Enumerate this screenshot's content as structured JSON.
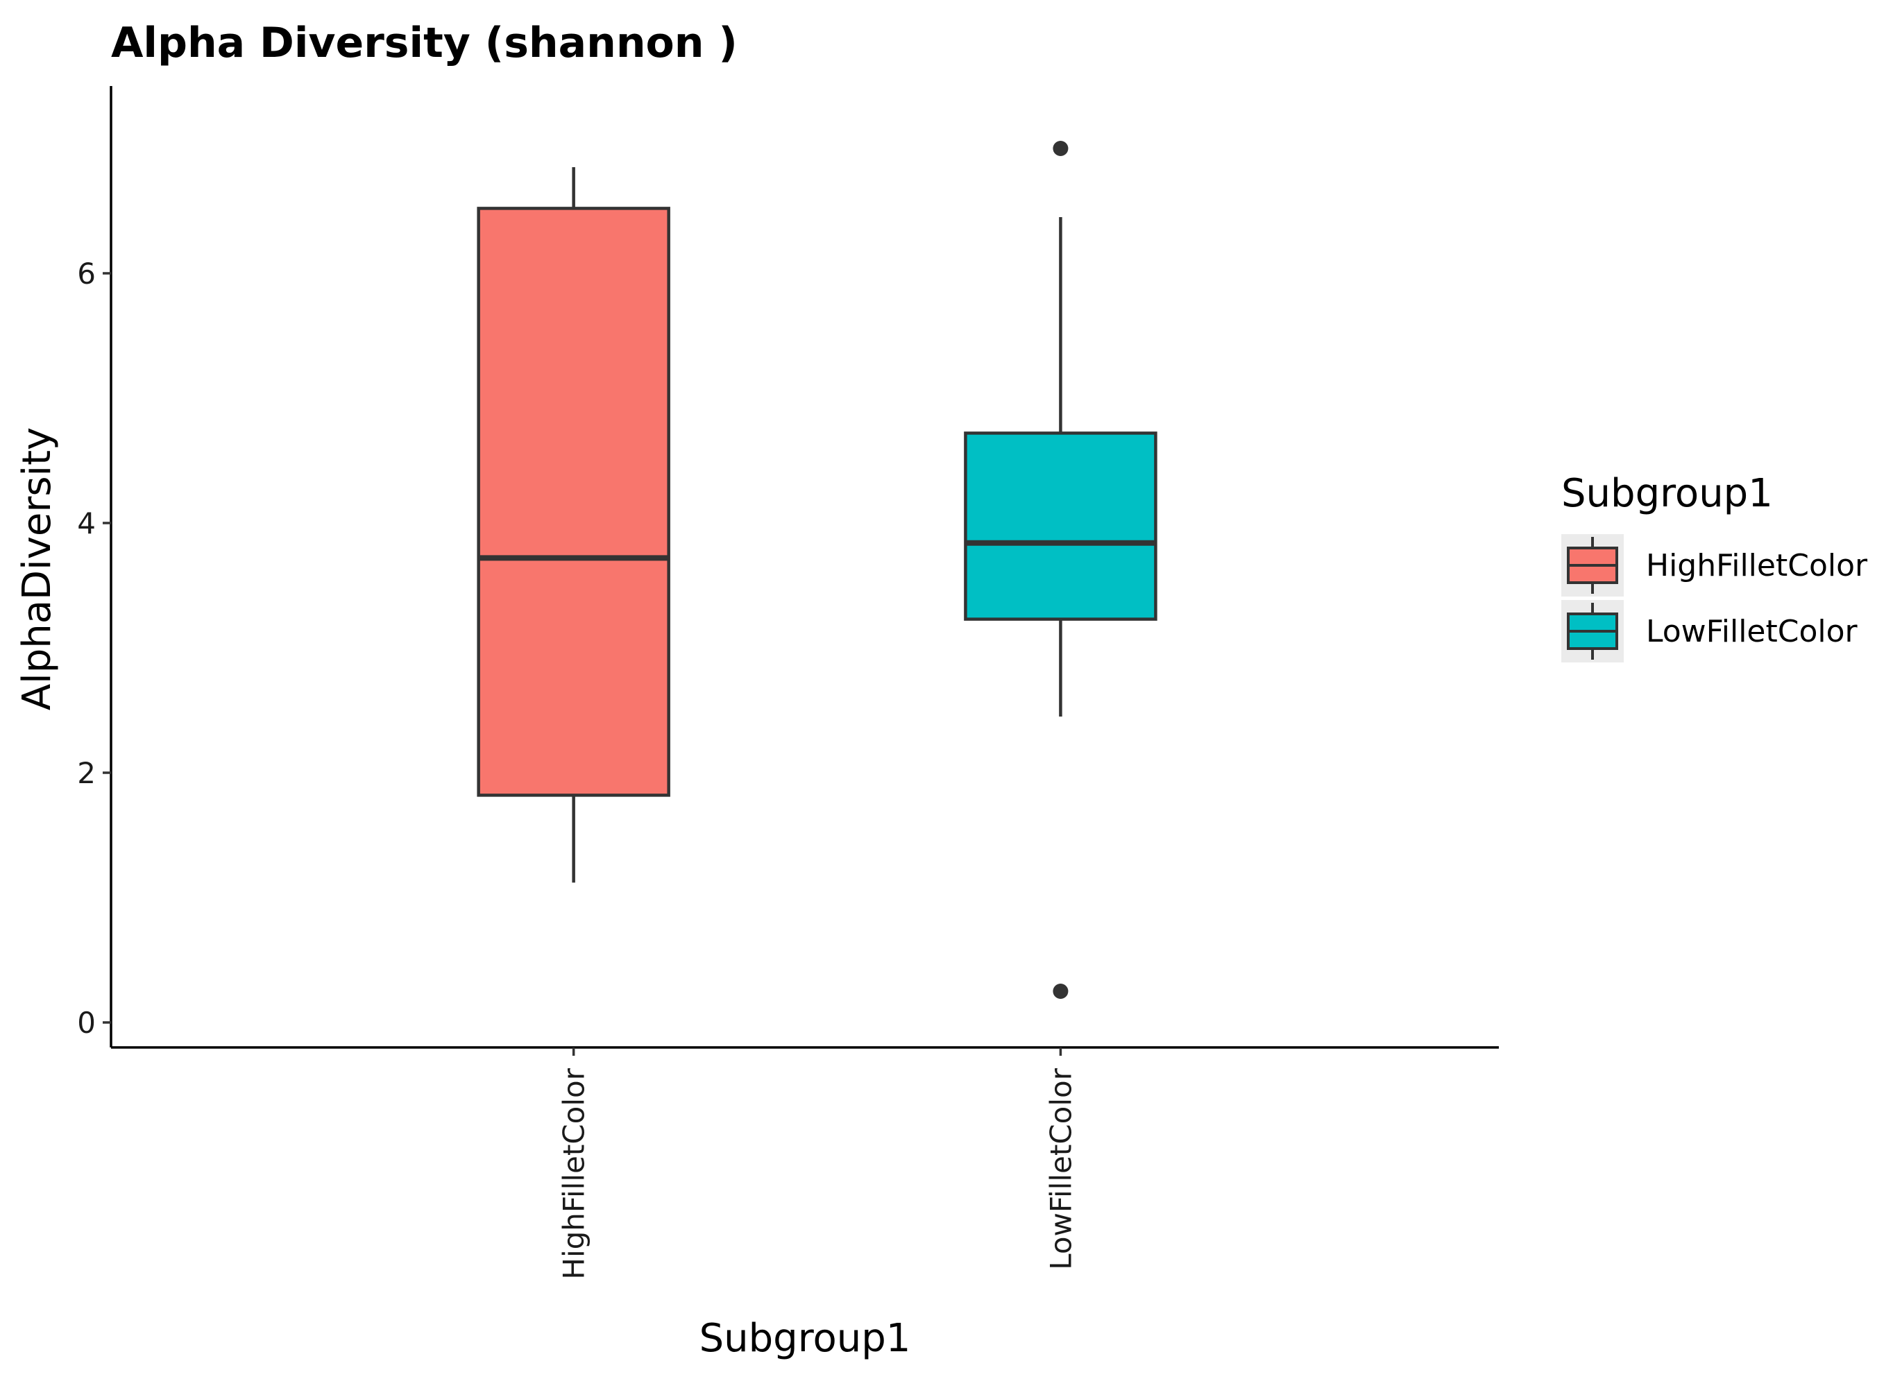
{
  "chart_data": {
    "type": "boxplot",
    "title": "Alpha Diversity (shannon )",
    "xlabel": "Subgroup1",
    "ylabel": "AlphaDiversity",
    "ylim": [
      -0.2,
      7.5
    ],
    "yticks": [
      0,
      2,
      4,
      6
    ],
    "categories": [
      "HighFilletColor",
      "LowFilletColor"
    ],
    "series": [
      {
        "name": "HighFilletColor",
        "color": "#F8766D",
        "whisker_low": 1.12,
        "q1": 1.82,
        "median": 3.72,
        "q3": 6.52,
        "whisker_high": 6.85,
        "outliers": []
      },
      {
        "name": "LowFilletColor",
        "color": "#00BFC4",
        "whisker_low": 2.45,
        "q1": 3.23,
        "median": 3.84,
        "q3": 4.72,
        "whisker_high": 6.45,
        "outliers": [
          7.0,
          0.25
        ]
      }
    ],
    "legend": {
      "title": "Subgroup1",
      "position": "right",
      "entries": [
        "HighFilletColor",
        "LowFilletColor"
      ]
    },
    "grid": false
  }
}
